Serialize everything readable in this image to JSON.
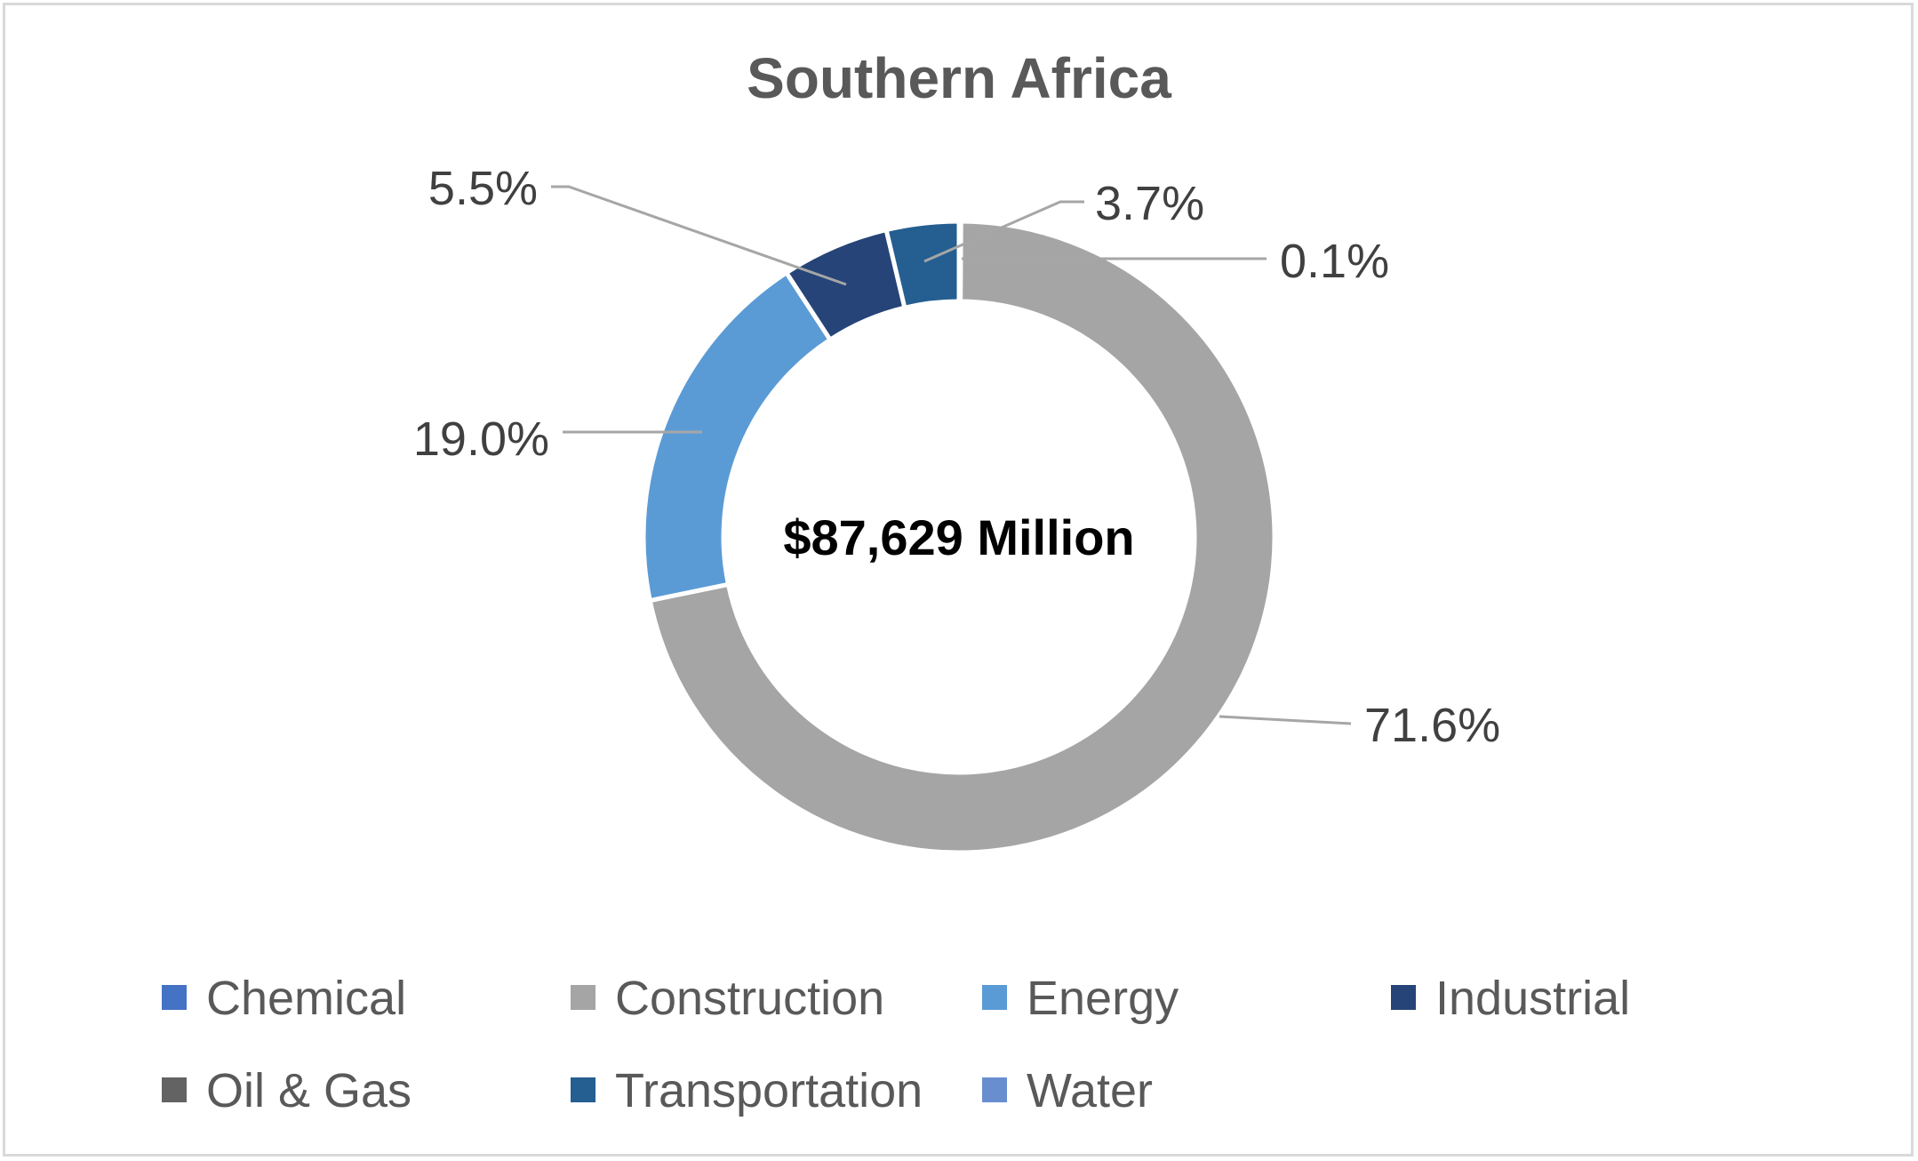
{
  "chart_data": {
    "type": "doughnut",
    "title": "Southern Africa",
    "center_label": "$87,629 Million",
    "categories": [
      "Chemical",
      "Construction",
      "Energy",
      "Industrial",
      "Oil & Gas",
      "Transportation",
      "Water"
    ],
    "values": [
      0.1,
      71.6,
      19.0,
      5.5,
      0.0,
      3.7,
      0.0
    ],
    "unit": "%",
    "colors": [
      "#4472C4",
      "#A5A5A5",
      "#5B9BD5",
      "#264478",
      "#636363",
      "#255E91",
      "#698ED0"
    ],
    "slice_order": [
      "Chemical",
      "Construction",
      "Energy",
      "Industrial",
      "Transportation"
    ],
    "data_labels": [
      {
        "category": "Chemical",
        "text": "0.1%"
      },
      {
        "category": "Construction",
        "text": "71.6%"
      },
      {
        "category": "Energy",
        "text": "19.0%"
      },
      {
        "category": "Industrial",
        "text": "5.5%"
      },
      {
        "category": "Transportation",
        "text": "3.7%"
      }
    ],
    "legend": {
      "position": "bottom",
      "items": [
        "Chemical",
        "Construction",
        "Energy",
        "Industrial",
        "Oil & Gas",
        "Transportation",
        "Water"
      ]
    }
  }
}
